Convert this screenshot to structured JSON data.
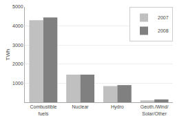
{
  "chart_data": {
    "type": "bar",
    "categories": [
      "Combustible\nfuels",
      "Nuclear",
      "Hydro",
      "Geoth./Wind/\nSolar/Other"
    ],
    "series": [
      {
        "name": "2007",
        "color": "#c0c0c0",
        "values": [
          4300,
          1450,
          850,
          100
        ]
      },
      {
        "name": "2008",
        "color": "#808080",
        "values": [
          4450,
          1450,
          900,
          150
        ]
      }
    ],
    "ylabel": "TWh",
    "ylim": [
      0,
      5000
    ],
    "yticks": [
      1000,
      2000,
      3000,
      4000,
      5000
    ],
    "grid": true,
    "legend": "upper right"
  }
}
